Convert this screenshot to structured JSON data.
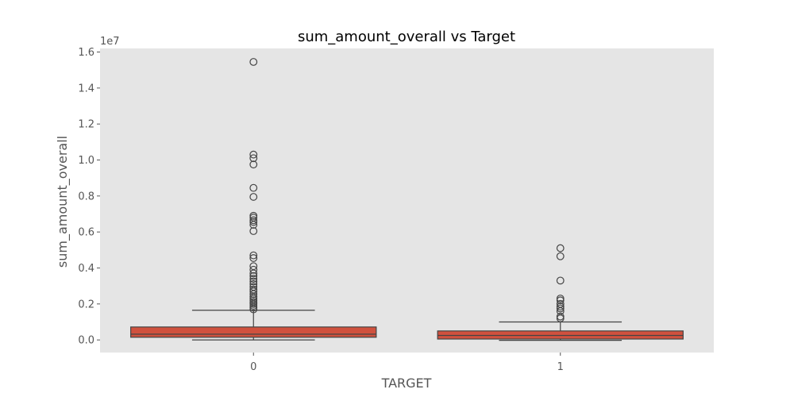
{
  "chart_data": {
    "type": "box",
    "title": "sum_amount_overall vs Target",
    "xlabel": "TARGET",
    "ylabel": "sum_amount_overall",
    "y_offset_label": "1e7",
    "ylim": [
      -0.07,
      1.62
    ],
    "yticks": [
      0.0,
      0.2,
      0.4,
      0.6,
      0.8,
      1.0,
      1.2,
      1.4,
      1.6
    ],
    "ytick_labels": [
      "0.0",
      "0.2",
      "0.4",
      "0.6",
      "0.8",
      "1.0",
      "1.2",
      "1.4",
      "1.6"
    ],
    "y_units_note": "values in units of 1e7",
    "categories": [
      "0",
      "1"
    ],
    "grid": false,
    "boxes": [
      {
        "category": "0",
        "whisker_low": 0.0,
        "q1": 0.015,
        "median": 0.032,
        "q3": 0.072,
        "whisker_high": 0.165,
        "outliers": [
          1.545,
          1.03,
          1.01,
          0.975,
          0.845,
          0.795,
          0.69,
          0.68,
          0.665,
          0.655,
          0.64,
          0.605,
          0.47,
          0.455,
          0.41,
          0.39,
          0.37,
          0.355,
          0.34,
          0.325,
          0.31,
          0.295,
          0.28,
          0.27,
          0.255,
          0.24,
          0.23,
          0.22,
          0.21,
          0.2,
          0.19,
          0.18,
          0.17
        ]
      },
      {
        "category": "1",
        "whisker_low": -0.002,
        "q1": 0.005,
        "median": 0.025,
        "q3": 0.05,
        "whisker_high": 0.1,
        "outliers": [
          0.51,
          0.465,
          0.33,
          0.23,
          0.22,
          0.2,
          0.185,
          0.175,
          0.16,
          0.13,
          0.12
        ]
      }
    ],
    "colors": {
      "box_fill": "#d0513e",
      "box_edge": "#444444",
      "background": "#e5e5e5",
      "outlier_edge": "#444444"
    }
  }
}
